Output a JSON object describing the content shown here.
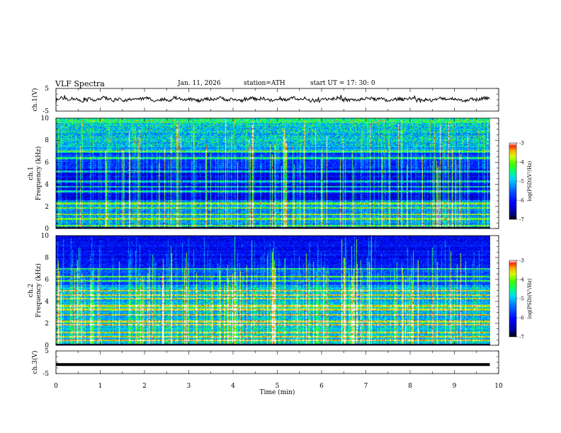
{
  "header": {
    "title": "VLF Spectra",
    "date": "Jan. 11, 2026",
    "station": "station=ATH",
    "start": "start  UT =   17: 30: 0"
  },
  "colors": {
    "colormap": [
      "#000000",
      "#0000c8",
      "#0000ff",
      "#0070ff",
      "#00d0ff",
      "#00ff80",
      "#40ff00",
      "#d0ff00",
      "#ffb000",
      "#ff3000",
      "#ffffff"
    ]
  },
  "chart_data": [
    {
      "type": "line",
      "panel": "ch1-waveform",
      "ylabel": "ch.1(V)",
      "ylim": [
        -5,
        5
      ],
      "yticks": [
        "5",
        "-5"
      ],
      "series": [
        {
          "description_level": 0.2,
          "peak_to_peak_approx": 1.4
        }
      ]
    },
    {
      "type": "heatmap",
      "panel": "ch1-spectrogram",
      "ylabel_channel": "ch.1",
      "ylabel": "Frequency  (kHz)",
      "ylim": [
        0,
        10
      ],
      "yticks": [
        "0",
        "2",
        "4",
        "6",
        "8",
        "10"
      ],
      "xlim": [
        0,
        10
      ],
      "colorbar": {
        "label": "log(PSD)(V²/Hz)",
        "range": [
          -7,
          -3
        ],
        "ticks": [
          "-3",
          "-4",
          "-5",
          "-6",
          "-7"
        ]
      },
      "bands_khz": [
        0.3,
        0.9,
        1.3,
        1.9,
        2.3,
        3.4,
        3.8,
        4.3,
        5.2,
        6.4,
        7.0
      ]
    },
    {
      "type": "heatmap",
      "panel": "ch2-spectrogram",
      "ylabel_channel": "ch.2",
      "ylabel": "Frequency  (kHz)",
      "ylim": [
        0,
        10
      ],
      "yticks": [
        "0",
        "2",
        "4",
        "6",
        "8",
        "10"
      ],
      "xlim": [
        0,
        10
      ],
      "colorbar": {
        "label": "log(PSD)(V²/Hz)",
        "range": [
          -7,
          -3
        ],
        "ticks": [
          "-3",
          "-4",
          "-5",
          "-6",
          "-7"
        ]
      },
      "bands_khz": [
        0.5,
        0.8,
        1.2,
        1.9,
        2.2,
        2.8,
        3.3,
        3.6,
        4.3,
        4.6,
        5.0,
        5.9,
        6.3,
        7.0
      ]
    },
    {
      "type": "line",
      "panel": "ch3-waveform",
      "ylabel": "ch.3(V)",
      "ylim": [
        -5,
        5
      ],
      "yticks": [
        "5",
        "-5"
      ],
      "series": [
        {
          "level": -1.0
        }
      ]
    }
  ],
  "xaxis": {
    "label": "Time  (min)",
    "ticks": [
      "0",
      "1",
      "2",
      "3",
      "4",
      "5",
      "6",
      "7",
      "8",
      "9",
      "10"
    ],
    "data_end": 9.8
  }
}
